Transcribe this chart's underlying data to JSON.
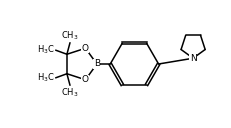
{
  "bg_color": "#ffffff",
  "line_color": "#000000",
  "line_width": 1.1,
  "font_size": 6.5,
  "figsize": [
    2.32,
    1.28
  ],
  "dpi": 100,
  "xlim": [
    0,
    10
  ],
  "ylim": [
    0,
    5.5
  ]
}
